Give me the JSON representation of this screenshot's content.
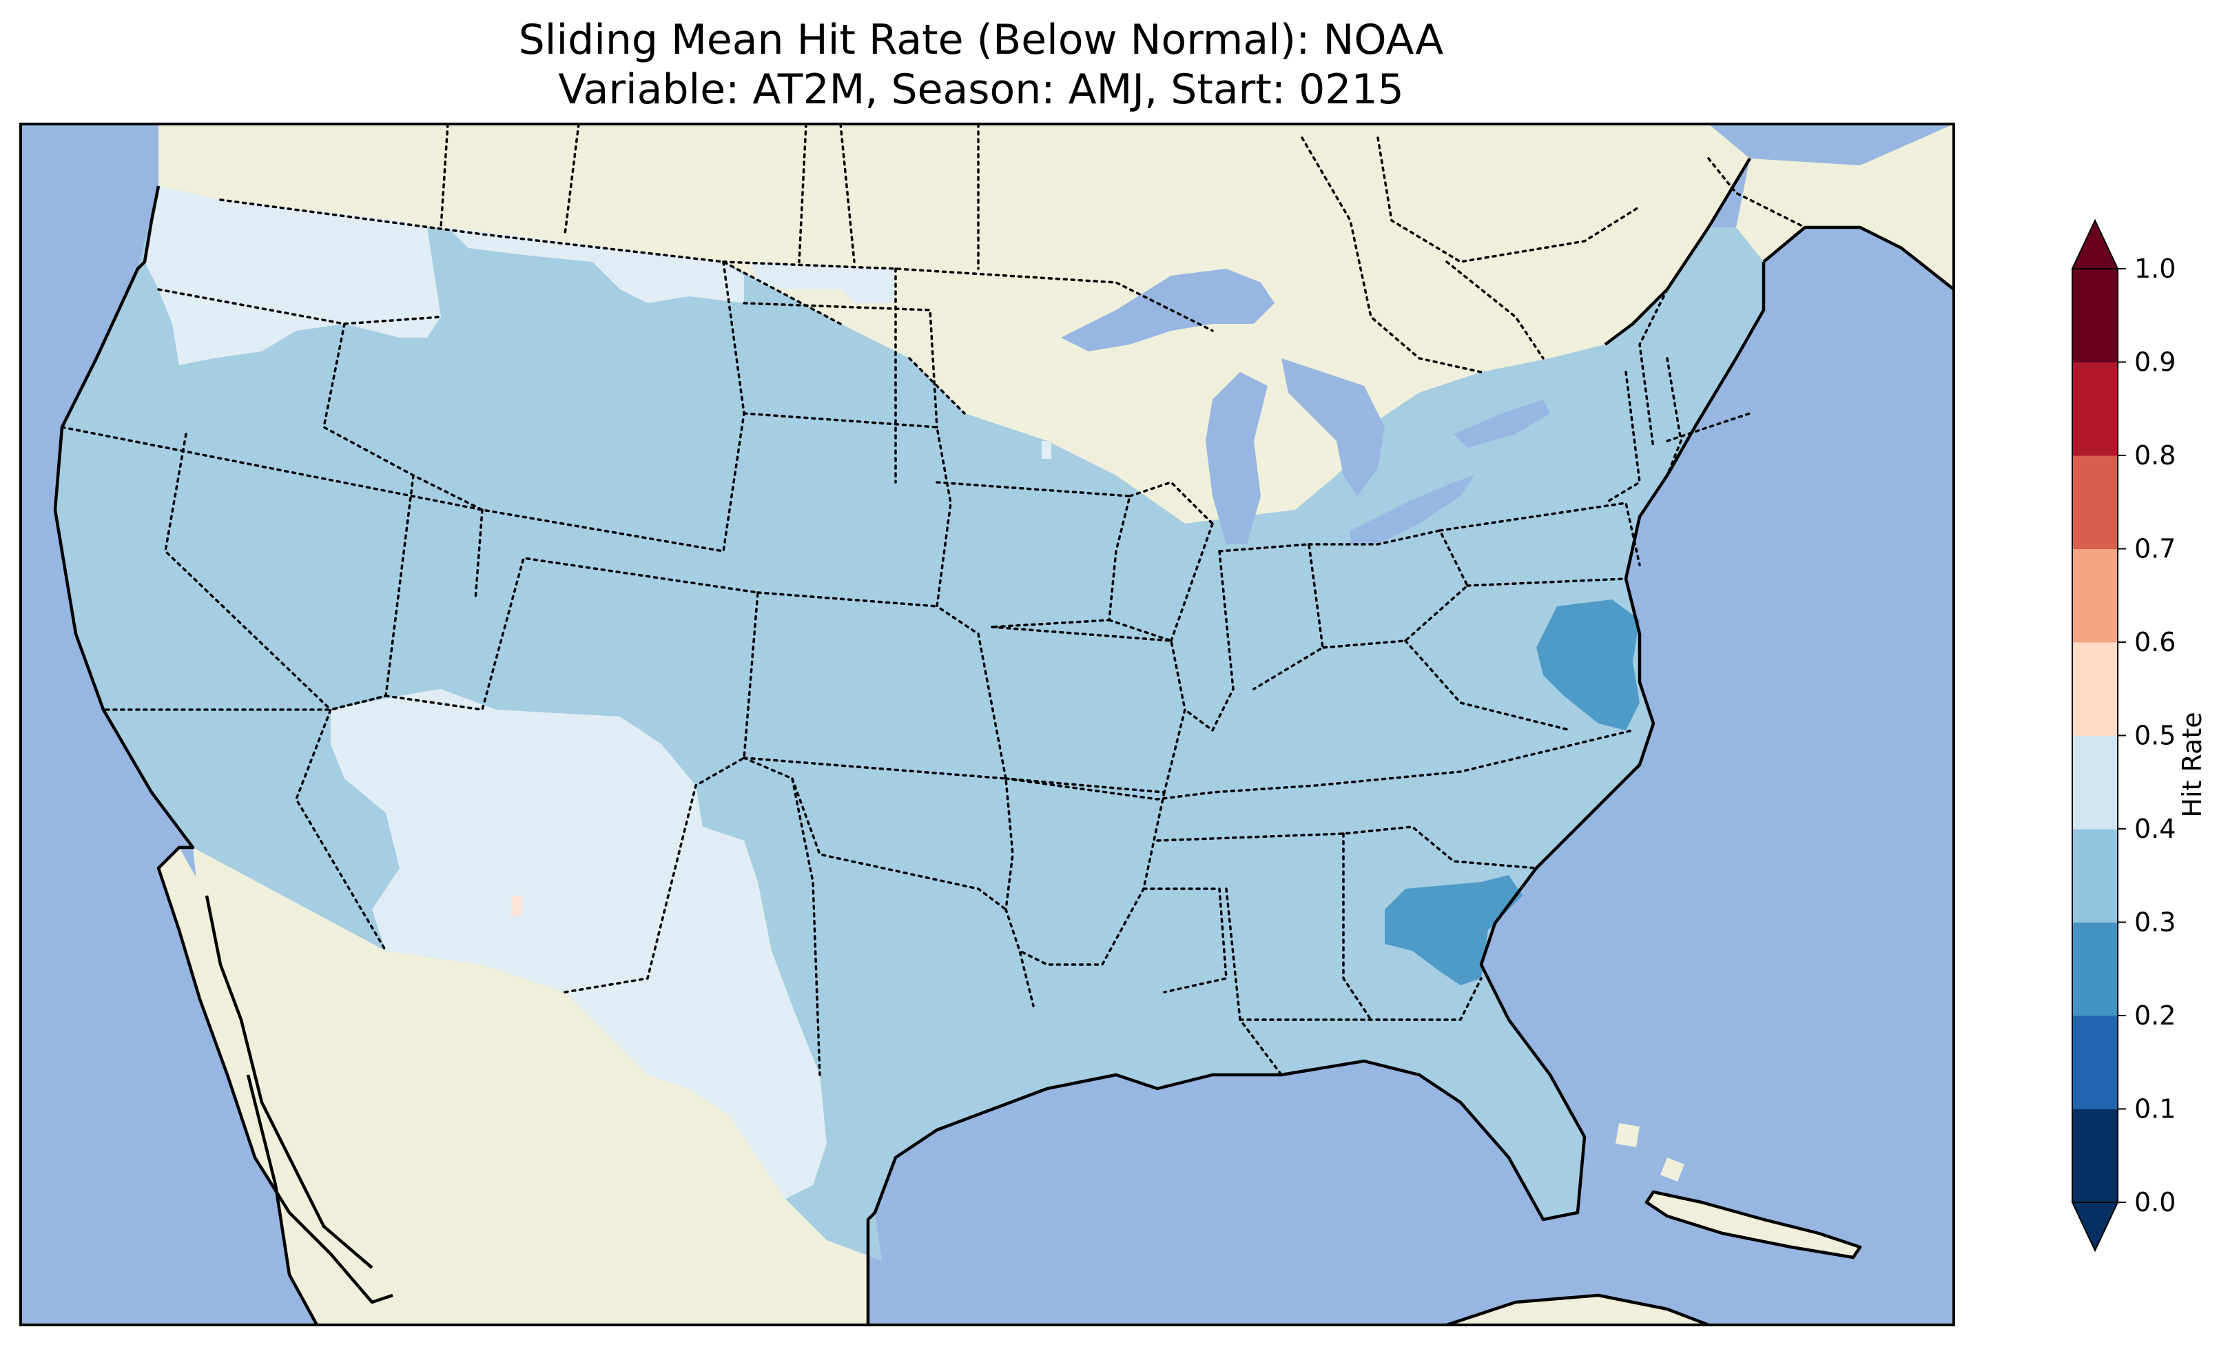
{
  "title": {
    "line1": "Sliding Mean Hit Rate (Below Normal): NOAA",
    "line2": "Variable: AT2M, Season: AMJ, Start: 0215"
  },
  "colorbar": {
    "label": "Hit Rate",
    "ticks": [
      "0.0",
      "0.1",
      "0.2",
      "0.3",
      "0.4",
      "0.5",
      "0.6",
      "0.7",
      "0.8",
      "0.9",
      "1.0"
    ],
    "colors": [
      "#053061",
      "#2166ac",
      "#4393c3",
      "#92c5de",
      "#d1e5f0",
      "#fddbc7",
      "#f4a582",
      "#d6604d",
      "#b2182b",
      "#67001f"
    ],
    "extend_low_color": "#053061",
    "extend_high_color": "#67001f"
  },
  "map": {
    "ocean_color": "#97b6e1",
    "land_color": "#efefdb",
    "bin_colors": {
      "0.2-0.3": "#4f9bc7",
      "0.3-0.4": "#a6cee3",
      "0.4-0.5": "#e1edf4",
      "0.5-0.6": "#fbe3d6"
    }
  }
}
